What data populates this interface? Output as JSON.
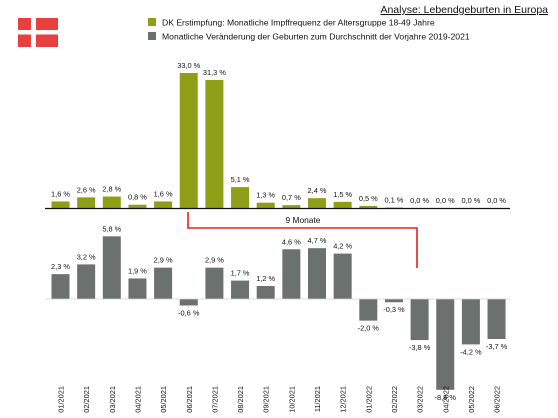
{
  "header": {
    "title": "Analyse: Lebendgeburten in Europa"
  },
  "flag": {
    "name": "denmark-flag",
    "colors": {
      "red": "#e8403e",
      "cross": "#ffffff"
    }
  },
  "annotation": {
    "label": "9 Monate",
    "color": "#e8201c"
  },
  "chart_data": {
    "type": "bar",
    "categories": [
      "01/2021",
      "02/2021",
      "03/2021",
      "04/2021",
      "05/2021",
      "06/2021",
      "07/2021",
      "08/2021",
      "09/2021",
      "10/2021",
      "11/2021",
      "12/2021",
      "01/2022",
      "02/2022",
      "03/2022",
      "04/2022",
      "05/2022",
      "06/2022"
    ],
    "series": [
      {
        "name": "DK Erstimpfung: Monatliche Impffrequenz der Altersgruppe 18-49 Jahre",
        "color": "#8e9f17",
        "values": [
          1.6,
          2.6,
          2.8,
          0.8,
          1.6,
          33.0,
          31.3,
          5.1,
          1.3,
          0.7,
          2.4,
          1.5,
          0.5,
          0.1,
          0.0,
          0.0,
          0.0,
          0.0
        ],
        "labels": [
          "1,6 %",
          "2,6 %",
          "2,8 %",
          "0,8 %",
          "1,6 %",
          "33,0 %",
          "31,3 %",
          "5,1 %",
          "1,3 %",
          "0,7 %",
          "2,4 %",
          "1,5 %",
          "0,5 %",
          "0,1 %",
          "0,0 %",
          "0,0 %",
          "0,0 %",
          "0,0 %"
        ]
      },
      {
        "name": "Monatliche Veränderung der Geburten zum Durchschnitt der Vorjahre 2019-2021",
        "color": "#6b716e",
        "values": [
          2.3,
          3.2,
          5.8,
          1.9,
          2.9,
          -0.6,
          2.9,
          1.7,
          1.2,
          4.6,
          4.7,
          4.2,
          -2.0,
          -0.3,
          -3.8,
          -8.4,
          -4.2,
          -3.7
        ],
        "labels": [
          "2,3 %",
          "3,2 %",
          "5,8 %",
          "1,9 %",
          "2,9 %",
          "-0,6 %",
          "2,9 %",
          "1,7 %",
          "1,2 %",
          "4,6 %",
          "4,7 %",
          "4,2 %",
          "-2,0 %",
          "-0,3 %",
          "-3,8 %",
          "-8,4 %",
          "-4,2 %",
          "-3,7 %"
        ]
      }
    ],
    "upper_ylim": [
      0,
      33
    ],
    "lower_ylim": [
      -8.4,
      5.8
    ],
    "grid": false,
    "legend": "top"
  }
}
